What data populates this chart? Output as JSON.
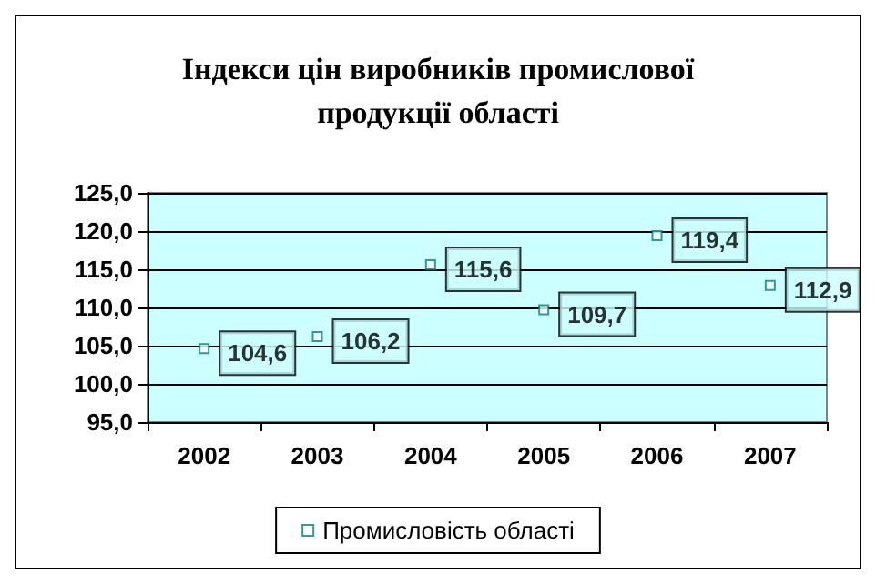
{
  "chart_data": {
    "type": "scatter",
    "title": "Індекси цін виробників промислової\nпродукції області",
    "categories": [
      "2002",
      "2003",
      "2004",
      "2005",
      "2006",
      "2007"
    ],
    "series": [
      {
        "name": "Промисловість області",
        "color": "#008080",
        "values": [
          104.6,
          106.2,
          115.6,
          109.7,
          119.4,
          112.9
        ],
        "value_labels": [
          "104,6",
          "106,2",
          "115,6",
          "109,7",
          "119,4",
          "112,9"
        ]
      }
    ],
    "ylim": [
      95,
      125
    ],
    "yticks": [
      {
        "value": 95,
        "label": "95,0"
      },
      {
        "value": 100,
        "label": "100,0"
      },
      {
        "value": 105,
        "label": "105,0"
      },
      {
        "value": 110,
        "label": "110,0"
      },
      {
        "value": 115,
        "label": "115,0"
      },
      {
        "value": 120,
        "label": "120,0"
      },
      {
        "value": 125,
        "label": "125,0"
      }
    ],
    "grid": "y",
    "legend": "bottom",
    "marker": "square"
  }
}
